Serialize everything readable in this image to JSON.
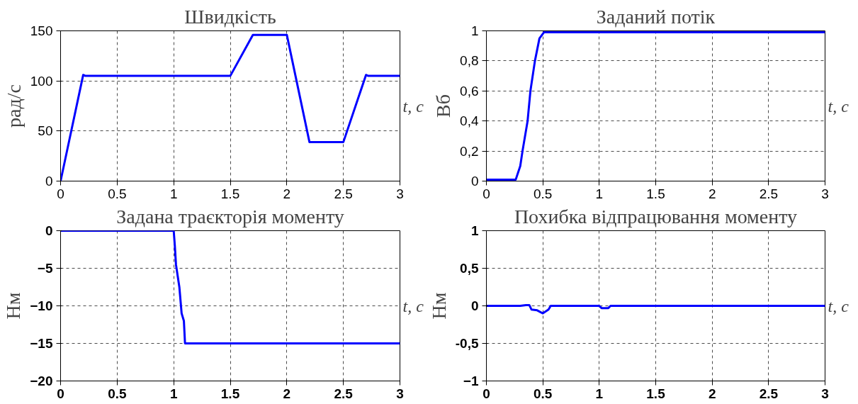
{
  "chart_data": [
    {
      "type": "line",
      "title": "Швидкість",
      "xlabel": "t, с",
      "ylabel": "рад/с",
      "x": [
        0,
        0.2,
        0.22,
        1.5,
        1.7,
        2.0,
        2.2,
        2.5,
        2.7,
        2.72,
        3
      ],
      "series": [
        {
          "color": "#0000ff",
          "values": [
            0,
            106,
            105,
            105,
            146,
            146,
            39,
            39,
            106,
            105,
            105
          ]
        }
      ],
      "xlim": [
        0,
        3
      ],
      "ylim": [
        0,
        150
      ],
      "xticks": [
        0,
        0.5,
        1,
        1.5,
        2,
        2.5,
        3
      ],
      "yticks": [
        0,
        50,
        100,
        150
      ],
      "grid": true,
      "line_style": "solid",
      "marker": "none"
    },
    {
      "type": "line",
      "title": "Заданий потік",
      "xlabel": "t, с",
      "ylabel": "Вб",
      "x": [
        0,
        0.26,
        0.3,
        0.32,
        0.365,
        0.39,
        0.43,
        0.47,
        0.51,
        3
      ],
      "series": [
        {
          "color": "#0000ff",
          "values": [
            0.01,
            0.01,
            0.1,
            0.2,
            0.4,
            0.6,
            0.8,
            0.95,
            0.99,
            0.99
          ]
        }
      ],
      "xlim": [
        0,
        3
      ],
      "ylim": [
        0,
        1
      ],
      "xticks": [
        0,
        0.5,
        1,
        1.5,
        2,
        2.5,
        3
      ],
      "yticks": [
        0,
        {
          "value": 0.2,
          "label": "0,2"
        },
        {
          "value": 0.4,
          "label": "0,4"
        },
        {
          "value": 0.6,
          "label": "0,6"
        },
        {
          "value": 0.8,
          "label": "0,8"
        },
        1
      ],
      "grid": true,
      "line_style": "solid",
      "marker": "none"
    },
    {
      "type": "line",
      "title": "Задана траєкторія моменту",
      "xlabel": "t, с",
      "ylabel": "Нм",
      "x": [
        0,
        1.0,
        1.01,
        1.02,
        1.05,
        1.07,
        1.09,
        1.1,
        3
      ],
      "series": [
        {
          "color": "#0000ff",
          "values": [
            0,
            0,
            -2,
            -4.5,
            -7.5,
            -11,
            -12,
            -15,
            -15
          ]
        }
      ],
      "xlim": [
        0,
        3
      ],
      "ylim": [
        -20,
        0
      ],
      "xticks": [
        0,
        0.5,
        1,
        1.5,
        2,
        2.5,
        3
      ],
      "yticks": [
        -20,
        -15,
        -10,
        -5,
        0
      ],
      "grid": true,
      "line_style": "solid",
      "marker": "none"
    },
    {
      "type": "line",
      "title": "Похибка відпрацювання моменту",
      "xlabel": "t, с",
      "ylabel": "Нм",
      "x": [
        0,
        0.3,
        0.35,
        0.38,
        0.4,
        0.45,
        0.5,
        0.55,
        0.57,
        1.0,
        1.02,
        1.08,
        1.1,
        3
      ],
      "series": [
        {
          "color": "#0000ff",
          "values": [
            0,
            0,
            0.01,
            0.01,
            -0.05,
            -0.06,
            -0.1,
            -0.05,
            0,
            0,
            -0.03,
            -0.03,
            0,
            0
          ]
        }
      ],
      "xlim": [
        0,
        3
      ],
      "ylim": [
        -1,
        1
      ],
      "xticks": [
        0,
        0.5,
        1,
        1.5,
        2,
        2.5,
        3
      ],
      "yticks": [
        -1,
        {
          "value": -0.5,
          "label": "-0,5"
        },
        0,
        {
          "value": 0.5,
          "label": "0,5"
        },
        1
      ],
      "grid": true,
      "line_style": "solid",
      "marker": "none"
    }
  ]
}
